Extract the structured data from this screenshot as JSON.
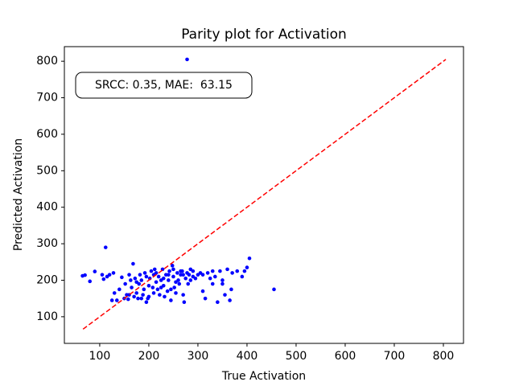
{
  "chart_data": {
    "type": "scatter",
    "title": "Parity plot for Activation",
    "x_label": "True Activation",
    "y_label": "Predicted Activation",
    "annotation": "SRCC: 0.35, MAE:  63.15",
    "color": "#0000ff",
    "x": [
      65,
      70,
      80,
      90,
      112,
      105,
      108,
      115,
      120,
      125,
      128,
      130,
      135,
      140,
      145,
      150,
      152,
      155,
      158,
      160,
      163,
      165,
      168,
      170,
      172,
      175,
      178,
      180,
      182,
      185,
      188,
      190,
      192,
      195,
      198,
      200,
      202,
      205,
      208,
      210,
      212,
      215,
      218,
      220,
      222,
      225,
      228,
      230,
      232,
      235,
      238,
      240,
      242,
      245,
      248,
      250,
      252,
      255,
      258,
      260,
      262,
      265,
      268,
      270,
      272,
      275,
      278,
      280,
      282,
      285,
      290,
      295,
      300,
      305,
      310,
      315,
      320,
      325,
      330,
      335,
      340,
      345,
      350,
      355,
      360,
      365,
      368,
      370,
      380,
      390,
      395,
      400,
      405,
      455,
      278,
      185,
      195,
      210,
      225,
      240,
      255,
      265,
      285,
      245,
      215,
      200,
      175,
      160,
      230,
      270,
      290,
      310,
      330,
      350,
      250
    ],
    "y": [
      212,
      214,
      197,
      224,
      290,
      215,
      203,
      210,
      215,
      145,
      220,
      165,
      145,
      175,
      208,
      150,
      190,
      160,
      148,
      215,
      200,
      180,
      245,
      155,
      205,
      165,
      150,
      190,
      215,
      200,
      160,
      175,
      220,
      140,
      150,
      185,
      205,
      225,
      180,
      165,
      230,
      195,
      175,
      210,
      160,
      200,
      230,
      185,
      155,
      215,
      170,
      200,
      225,
      145,
      240,
      210,
      180,
      165,
      220,
      200,
      190,
      215,
      225,
      160,
      140,
      205,
      220,
      190,
      215,
      200,
      225,
      205,
      215,
      220,
      170,
      150,
      220,
      205,
      190,
      210,
      140,
      225,
      190,
      160,
      230,
      145,
      175,
      220,
      225,
      210,
      225,
      235,
      260,
      175,
      805,
      150,
      210,
      215,
      180,
      215,
      195,
      225,
      230,
      175,
      220,
      155,
      195,
      160,
      205,
      215,
      210,
      215,
      225,
      200,
      230
    ],
    "parity_line": {
      "x": [
        66,
        805
      ],
      "y": [
        66,
        805
      ],
      "color": "#ff0000"
    },
    "xlim": [
      28,
      841
    ],
    "ylim": [
      27,
      840
    ],
    "xticks": [
      100,
      200,
      300,
      400,
      500,
      600,
      700,
      800
    ],
    "yticks": [
      100,
      200,
      300,
      400,
      500,
      600,
      700,
      800
    ]
  }
}
